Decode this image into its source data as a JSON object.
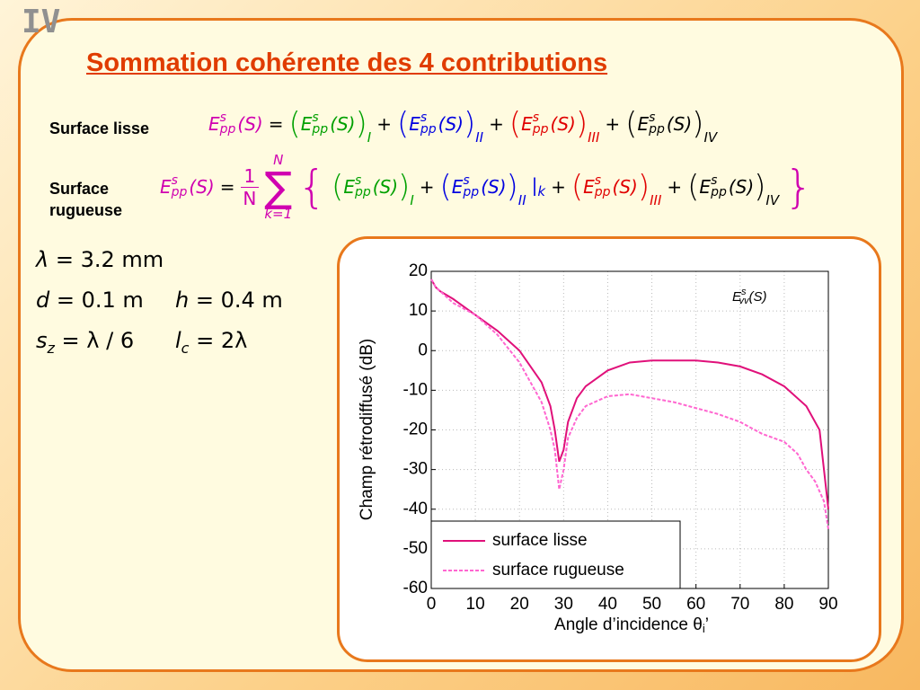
{
  "slide": {
    "number": "IV",
    "title": "Sommation cohérente des 4 contributions"
  },
  "equations": [
    {
      "label": "Surface lisse",
      "items": [
        {
          "E": "E",
          "sup": "s",
          "sub": "pp",
          "arg": "(S)",
          "color": "#d000b0"
        },
        {
          "text": "="
        },
        {
          "open": "(",
          "E": "E",
          "sup": "s",
          "sub": "pp",
          "arg": "(S)",
          "close": ")",
          "index": "I",
          "color": "#00a000"
        },
        {
          "text": "+"
        },
        {
          "open": "(",
          "E": "E",
          "sup": "s",
          "sub": "pp",
          "arg": "(S)",
          "close": ")",
          "index": "II",
          "color": "#0000e0"
        },
        {
          "text": "+"
        },
        {
          "open": "(",
          "E": "E",
          "sup": "s",
          "sub": "pp",
          "arg": "(S)",
          "close": ")",
          "index": "III",
          "color": "#e00000"
        },
        {
          "text": "+"
        },
        {
          "open": "(",
          "E": "E",
          "sup": "s",
          "sub": "pp",
          "arg": "(S)",
          "close": ")",
          "index": "IV",
          "color": "#000000"
        }
      ]
    },
    {
      "label": "Surface rugueuse",
      "items": [
        {
          "E": "E",
          "sup": "s",
          "sub": "pp",
          "arg": "(S)",
          "color": "#d000b0"
        },
        {
          "text": "="
        },
        {
          "num": "1",
          "den": "N",
          "color": "#d000b0"
        },
        {
          "top": "N",
          "sym": "∑",
          "bottom": "k=1",
          "color": "#d000b0"
        },
        {
          "text": "{",
          "big": true,
          "color": "#d000b0"
        },
        {
          "open": "(",
          "E": "E",
          "sup": "s",
          "sub": "pp",
          "arg": "(S)",
          "close": ")",
          "index": "I",
          "color": "#00a000"
        },
        {
          "text": "+"
        },
        {
          "open": "(",
          "E": "E",
          "sup": "s",
          "sub": "pp",
          "arg": "(S)",
          "close": ")",
          "index": "II",
          "color": "#0000e0"
        },
        {
          "text": "|",
          "sub": "k",
          "color": "#0000e0"
        },
        {
          "text": "+"
        },
        {
          "open": "(",
          "E": "E",
          "sup": "s",
          "sub": "pp",
          "arg": "(S)",
          "close": ")",
          "index": "III",
          "color": "#e00000"
        },
        {
          "text": "+"
        },
        {
          "open": "(",
          "E": "E",
          "sup": "s",
          "sub": "pp",
          "arg": "(S)",
          "close": ")",
          "index": "IV",
          "color": "#000000"
        },
        {
          "text": "}",
          "big": true,
          "color": "#d000b0"
        }
      ]
    }
  ],
  "parameters": [
    [
      {
        "base": "λ",
        "rest": " = 3.2 mm"
      }
    ],
    [
      {
        "base": "d",
        "rest": " = 0.1 m"
      },
      {
        "base": "h",
        "rest": " = 0.4 m"
      }
    ],
    [
      {
        "base": "s",
        "sub": "z",
        "rest": " = λ / 6"
      },
      {
        "base": "l",
        "sub": "c",
        "rest": " = 2λ"
      }
    ]
  ],
  "chart_data": {
    "type": "line",
    "annotation": {
      "E": "E",
      "sup": "s",
      "sub": "vv",
      "arg": "(S)"
    },
    "xlabel": "Angle d’incidence θ",
    "xlabel_sub": "i",
    "xlabel_suffix": "’",
    "ylabel": "Champ rétrodiffusé (dB)",
    "xlim": [
      0,
      90
    ],
    "ylim": [
      -60,
      20
    ],
    "xticks": [
      0,
      10,
      20,
      30,
      40,
      50,
      60,
      70,
      80,
      90
    ],
    "yticks": [
      20,
      10,
      0,
      -10,
      -20,
      -30,
      -40,
      -50,
      -60
    ],
    "grid": true,
    "series": [
      {
        "name": "surface lisse",
        "color": "#e0107a",
        "dashed": false,
        "x": [
          0,
          1,
          2,
          5,
          10,
          15,
          20,
          25,
          27,
          28,
          29,
          30,
          31,
          33,
          35,
          40,
          45,
          50,
          55,
          60,
          65,
          70,
          75,
          80,
          85,
          88,
          89,
          90
        ],
        "values": [
          18,
          16,
          15,
          13,
          9,
          5,
          0,
          -8,
          -14,
          -20,
          -28,
          -25,
          -18,
          -12,
          -9,
          -5,
          -3,
          -2.5,
          -2.5,
          -2.5,
          -3,
          -4,
          -6,
          -9,
          -14,
          -20,
          -30,
          -40
        ]
      },
      {
        "name": "surface rugueuse",
        "color": "#ff66d0",
        "dashed": true,
        "x": [
          0,
          1,
          2,
          5,
          10,
          15,
          20,
          25,
          27,
          28,
          29,
          30,
          31,
          33,
          35,
          40,
          45,
          50,
          55,
          60,
          65,
          70,
          75,
          80,
          83,
          85,
          87,
          89,
          90
        ],
        "values": [
          18,
          16,
          15,
          12,
          9,
          4,
          -3,
          -13,
          -20,
          -25,
          -35,
          -30,
          -22,
          -17,
          -14,
          -11.5,
          -11,
          -12,
          -13,
          -14.5,
          -16,
          -18,
          -21,
          -23,
          -26,
          -30,
          -33,
          -38,
          -45
        ]
      }
    ]
  }
}
